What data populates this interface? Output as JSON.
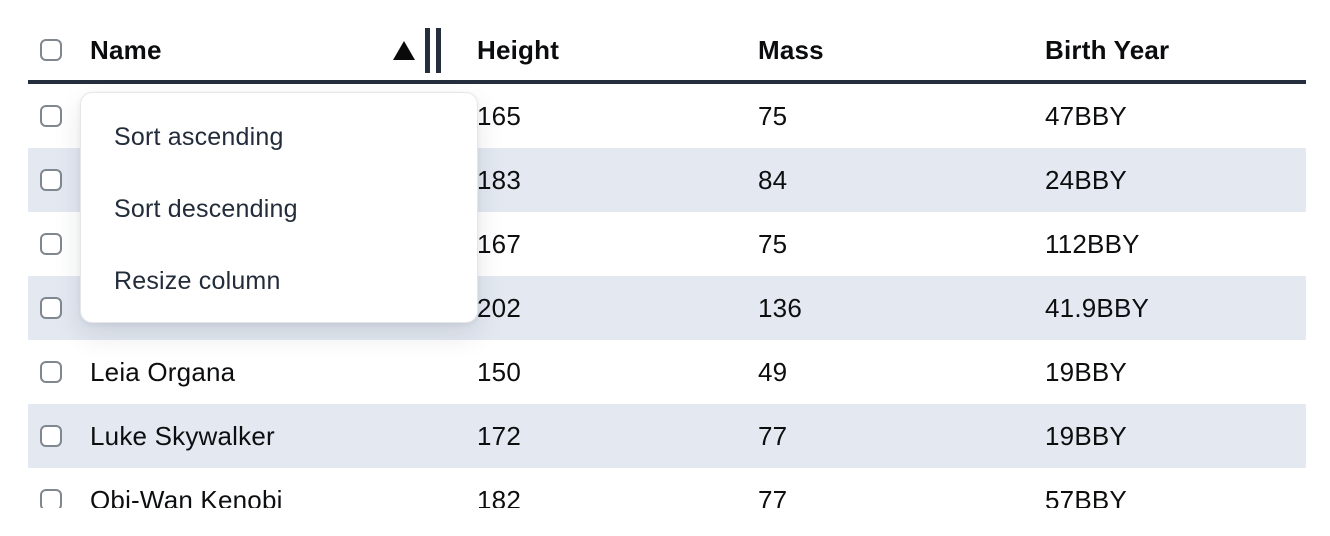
{
  "table": {
    "columns": [
      {
        "key": "name",
        "label": "Name",
        "sort": "ascending"
      },
      {
        "key": "height",
        "label": "Height",
        "sort": "none"
      },
      {
        "key": "mass",
        "label": "Mass",
        "sort": "none"
      },
      {
        "key": "birth_year",
        "label": "Birth Year",
        "sort": "none"
      }
    ],
    "rows": [
      {
        "name": "",
        "height": "165",
        "mass": "75",
        "birth_year": "47BBY"
      },
      {
        "name": "",
        "height": "183",
        "mass": "84",
        "birth_year": "24BBY"
      },
      {
        "name": "",
        "height": "167",
        "mass": "75",
        "birth_year": "112BBY"
      },
      {
        "name": "",
        "height": "202",
        "mass": "136",
        "birth_year": "41.9BBY"
      },
      {
        "name": "Leia Organa",
        "height": "150",
        "mass": "49",
        "birth_year": "19BBY"
      },
      {
        "name": "Luke Skywalker",
        "height": "172",
        "mass": "77",
        "birth_year": "19BBY"
      },
      {
        "name": "Obi-Wan Kenobi",
        "height": "182",
        "mass": "77",
        "birth_year": "57BBY"
      }
    ]
  },
  "context_menu": {
    "items": [
      {
        "label": "Sort ascending"
      },
      {
        "label": "Sort descending"
      },
      {
        "label": "Resize column"
      }
    ]
  },
  "icons": {
    "sort_ascending": "sort-ascending-triangle",
    "column_resize": "column-resize-double-bar",
    "checkbox": "empty-checkbox"
  },
  "colors": {
    "row_stripe": "#e3e8f1",
    "header_border": "#242e3d",
    "menu_text": "#222c3b",
    "table_text": "#0d0e10",
    "checkbox_border": "#81878f",
    "sort_icon": "#0a0a0a"
  }
}
